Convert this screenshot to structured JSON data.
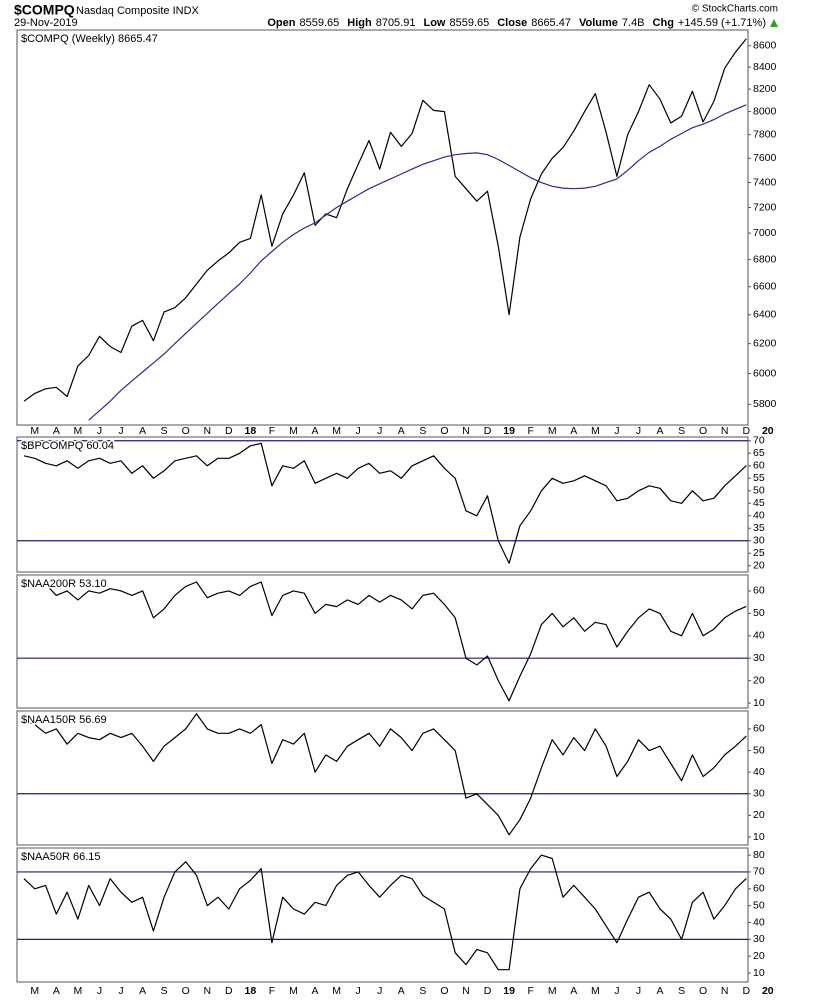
{
  "header": {
    "symbol": "$COMPQ",
    "name": "Nasdaq Composite INDX",
    "date": "29-Nov-2019",
    "watermark": "© StockCharts.com",
    "quote": [
      {
        "label": "Open",
        "value": "8559.65"
      },
      {
        "label": "High",
        "value": "8705.91"
      },
      {
        "label": "Low",
        "value": "8559.65"
      },
      {
        "label": "Close",
        "value": "8665.47"
      },
      {
        "label": "Volume",
        "value": "7.4B"
      },
      {
        "label": "Chg",
        "value": "+145.59 (+1.71%)"
      }
    ]
  },
  "chart_data": [
    {
      "type": "line",
      "title": "$COMPQ (Weekly) 8665.47",
      "log_scale": true,
      "categories": [
        null,
        "M",
        null,
        "A",
        null,
        "M",
        null,
        "J",
        null,
        "J",
        null,
        "A",
        null,
        "S",
        null,
        "O",
        null,
        "N",
        null,
        "D",
        null,
        "18",
        null,
        "F",
        null,
        "M",
        null,
        "A",
        null,
        "M",
        null,
        "J",
        null,
        "J",
        null,
        "A",
        null,
        "S",
        null,
        "O",
        null,
        "N",
        null,
        "D",
        null,
        "19",
        null,
        "F",
        null,
        "M",
        null,
        "A",
        null,
        "M",
        null,
        "J",
        null,
        "J",
        null,
        "A",
        null,
        "S",
        null,
        "O",
        null,
        "N",
        null,
        "D",
        null,
        "20"
      ],
      "ylim": [
        5670,
        8750
      ],
      "yticks": [
        5800,
        6000,
        6200,
        6400,
        6600,
        6800,
        7000,
        7200,
        7400,
        7600,
        7800,
        8000,
        8200,
        8400,
        8600
      ],
      "series": [
        {
          "color": "#000000",
          "values": [
            5820,
            5870,
            5900,
            5910,
            5850,
            6050,
            6120,
            6250,
            6180,
            6140,
            6320,
            6360,
            6220,
            6420,
            6450,
            6520,
            6620,
            6720,
            6790,
            6850,
            6930,
            6960,
            7300,
            6900,
            7150,
            7300,
            7480,
            7060,
            7150,
            7120,
            7350,
            7550,
            7750,
            7510,
            7820,
            7700,
            7810,
            8100,
            8010,
            8000,
            7450,
            7350,
            7250,
            7330,
            6900,
            6400,
            6970,
            7270,
            7470,
            7600,
            7690,
            7830,
            8000,
            8160,
            7820,
            7450,
            7800,
            8000,
            8240,
            8110,
            7900,
            7960,
            8180,
            7910,
            8090,
            8390,
            8540,
            8665.47,
            null,
            null
          ]
        },
        {
          "color": "#2b2b8f",
          "values": [
            null,
            null,
            null,
            null,
            null,
            null,
            5700,
            5760,
            5820,
            5890,
            5950,
            6010,
            6070,
            6130,
            6200,
            6270,
            6340,
            6410,
            6480,
            6550,
            6620,
            6700,
            6790,
            6860,
            6930,
            6990,
            7040,
            7080,
            7140,
            7200,
            7250,
            7300,
            7350,
            7390,
            7430,
            7470,
            7510,
            7550,
            7580,
            7610,
            7630,
            7640,
            7645,
            7630,
            7590,
            7540,
            7490,
            7440,
            7400,
            7370,
            7355,
            7350,
            7355,
            7370,
            7400,
            7430,
            7500,
            7580,
            7650,
            7700,
            7760,
            7810,
            7860,
            7890,
            7930,
            7980,
            8020,
            8060,
            null,
            null
          ]
        }
      ]
    },
    {
      "type": "line",
      "title": "$BPCOMPQ 60.04",
      "ylim": [
        17.5,
        71.5
      ],
      "yticks": [
        20,
        25,
        30,
        35,
        40,
        45,
        50,
        55,
        60,
        65,
        70
      ],
      "reference_lines": [
        30,
        70
      ],
      "reference_color": "#1c1c7a",
      "series": [
        {
          "color": "#000000",
          "values": [
            64,
            63,
            61,
            60,
            62,
            59,
            62,
            63,
            61,
            62,
            57,
            60,
            55,
            58,
            62,
            63,
            64,
            60,
            63,
            63,
            65,
            68,
            69,
            52,
            60,
            59,
            62,
            53,
            55,
            57,
            55,
            59,
            61,
            57,
            58,
            55,
            60,
            62,
            64,
            59,
            55,
            42,
            40,
            48,
            30,
            21,
            36,
            42,
            50,
            55,
            53,
            54,
            56,
            54,
            52,
            46,
            47,
            50,
            52,
            51,
            46,
            45,
            50,
            46,
            47,
            52,
            56,
            60.04,
            null,
            null
          ]
        }
      ]
    },
    {
      "type": "line",
      "title": "$NAA200R 53.10",
      "ylim": [
        7.8,
        67.1
      ],
      "yticks": [
        10,
        20,
        30,
        40,
        50,
        60
      ],
      "reference_lines": [
        30
      ],
      "reference_color": "#1c1c7a",
      "series": [
        {
          "color": "#000000",
          "values": [
            64,
            62,
            63,
            58,
            60,
            56,
            60,
            59,
            61,
            60,
            58,
            60,
            48,
            52,
            58,
            62,
            64,
            57,
            59,
            60,
            58,
            62,
            64,
            49,
            58,
            60,
            59,
            50,
            54,
            53,
            56,
            54,
            58,
            55,
            58,
            56,
            52,
            58,
            59,
            54,
            48,
            30,
            27,
            31,
            20,
            11,
            22,
            32,
            45,
            50,
            44,
            48,
            42,
            46,
            45,
            35,
            42,
            48,
            52,
            50,
            42,
            40,
            50,
            40,
            43,
            48,
            51,
            53.1,
            null,
            null
          ]
        }
      ]
    },
    {
      "type": "line",
      "title": "$NAA150R 56.69",
      "ylim": [
        6.3,
        68.3
      ],
      "yticks": [
        10,
        20,
        30,
        40,
        50,
        60
      ],
      "reference_lines": [
        30
      ],
      "reference_color": "#1c1c7a",
      "series": [
        {
          "color": "#000000",
          "values": [
            64,
            62,
            58,
            60,
            53,
            58,
            56,
            55,
            58,
            56,
            58,
            52,
            45,
            52,
            56,
            60,
            67,
            60,
            58,
            58,
            60,
            58,
            62,
            44,
            55,
            53,
            58,
            40,
            48,
            45,
            52,
            55,
            58,
            52,
            60,
            56,
            50,
            58,
            60,
            55,
            50,
            28,
            30,
            25,
            20,
            11,
            18,
            28,
            42,
            55,
            48,
            56,
            50,
            60,
            52,
            38,
            45,
            55,
            50,
            52,
            44,
            36,
            48,
            38,
            42,
            48,
            52,
            56.69,
            null,
            null
          ]
        }
      ]
    },
    {
      "type": "line",
      "title": "$NAA50R 66.15",
      "categories": [
        null,
        "M",
        null,
        "A",
        null,
        "M",
        null,
        "J",
        null,
        "J",
        null,
        "A",
        null,
        "S",
        null,
        "O",
        null,
        "N",
        null,
        "D",
        null,
        "18",
        null,
        "F",
        null,
        "M",
        null,
        "A",
        null,
        "M",
        null,
        "J",
        null,
        "J",
        null,
        "A",
        null,
        "S",
        null,
        "O",
        null,
        "N",
        null,
        "D",
        null,
        "19",
        null,
        "F",
        null,
        "M",
        null,
        "A",
        null,
        "M",
        null,
        "J",
        null,
        "J",
        null,
        "A",
        null,
        "S",
        null,
        "O",
        null,
        "N",
        null,
        "D",
        null,
        "20"
      ],
      "ylim": [
        4.7,
        84.2
      ],
      "yticks": [
        10,
        20,
        30,
        40,
        50,
        60,
        70,
        80
      ],
      "reference_lines": [
        30,
        70
      ],
      "reference_color": "#1c1c7a",
      "series": [
        {
          "color": "#000000",
          "values": [
            66,
            60,
            62,
            45,
            58,
            42,
            62,
            50,
            66,
            58,
            52,
            55,
            35,
            55,
            70,
            76,
            68,
            50,
            55,
            48,
            60,
            65,
            72,
            28,
            55,
            48,
            45,
            52,
            50,
            62,
            68,
            70,
            62,
            55,
            62,
            68,
            66,
            56,
            52,
            48,
            22,
            15,
            24,
            22,
            12,
            12,
            60,
            72,
            80,
            78,
            55,
            62,
            55,
            48,
            38,
            28,
            42,
            55,
            58,
            48,
            42,
            30,
            52,
            58,
            42,
            50,
            60,
            66.15,
            null,
            null
          ]
        }
      ]
    }
  ]
}
